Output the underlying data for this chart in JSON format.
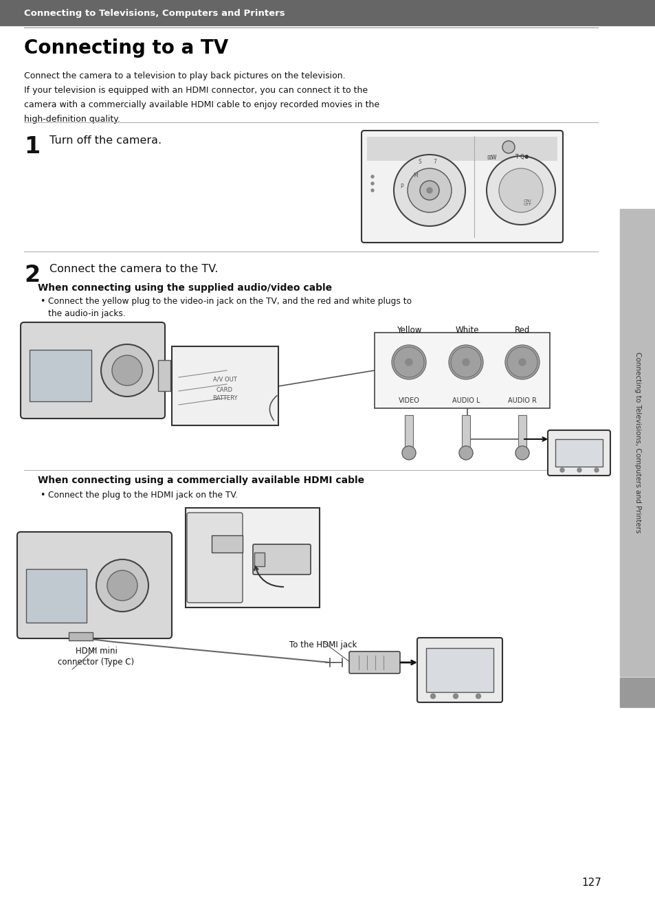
{
  "page_bg": "#ffffff",
  "header_bg": "#666666",
  "header_text": "Connecting to Televisions, Computers and Printers",
  "header_text_color": "#ffffff",
  "title": "Connecting to a TV",
  "title_color": "#000000",
  "intro_line1": "Connect the camera to a television to play back pictures on the television.",
  "intro_line2": "If your television is equipped with an HDMI connector, you can connect it to the",
  "intro_line3": "camera with a commercially available HDMI cable to enjoy recorded movies in the",
  "intro_line4": "high-definition quality.",
  "step1_num": "1",
  "step1_text": "Turn off the camera.",
  "step2_num": "2",
  "step2_text": "Connect the camera to the TV.",
  "section1_title": "When connecting using the supplied audio/video cable",
  "section1_bullet": "Connect the yellow plug to the video-in jack on the TV, and the red and white plugs to",
  "section1_bullet2": "the audio-in jacks.",
  "section1_labels": [
    "Yellow",
    "White",
    "Red"
  ],
  "section1_sublabels": [
    "VIDEO",
    "AUDIO L",
    "AUDIO R"
  ],
  "section2_title": "When connecting using a commercially available HDMI cable",
  "section2_bullet": "Connect the plug to the HDMI jack on the TV.",
  "label_hdmi_mini": "HDMI mini",
  "label_hdmi_mini2": "connector (Type C)",
  "label_hdmi_jack": "To the HDMI jack",
  "page_number": "127",
  "sidebar_text": "Connecting to Televisions, Computers and Printers",
  "header_line_color": "#aaaaaa",
  "step_line_color": "#aaaaaa",
  "sidebar_bg": "#bbbbbb",
  "text_color": "#111111",
  "diagram_bg": "#f0f0f0",
  "diagram_border": "#444444"
}
